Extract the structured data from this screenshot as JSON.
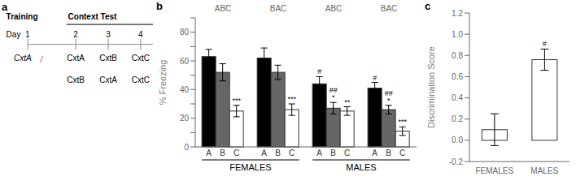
{
  "chart_data": [
    {
      "type": "diagram",
      "title": "a",
      "annotations": [
        {
          "text": "Training",
          "days": [
            {
              "label": "Day  1",
              "contexts": [
                "CxtA"
              ],
              "marks": [
                {
                  "text": "/",
                  "color": "#cc3333"
                }
              ]
            }
          ]
        },
        {
          "text": "Context Test",
          "days": [
            {
              "label": "2",
              "contexts": [
                "CxtA",
                "CxtB"
              ]
            },
            {
              "label": "3",
              "contexts": [
                "CxtB",
                "CxtA"
              ]
            },
            {
              "label": "4",
              "contexts": [
                "CxtC",
                "CxtC"
              ]
            }
          ]
        }
      ]
    },
    {
      "type": "bar",
      "title": "b",
      "categories": [
        "ABC",
        "BAC",
        "ABC",
        "BAC"
      ],
      "series": [
        {
          "name": "A",
          "color": "black",
          "values": [
            63,
            62,
            44,
            41
          ],
          "errors": [
            5,
            7,
            5,
            4
          ],
          "annotations": [
            [],
            [],
            [
              "#"
            ],
            [
              "#"
            ]
          ]
        },
        {
          "name": "B",
          "color": "#666666",
          "values": [
            52,
            52,
            27,
            26
          ],
          "errors": [
            6,
            5,
            4,
            3
          ],
          "annotations": [
            [],
            [],
            [
              "*",
              "##"
            ],
            [
              "*",
              "##"
            ]
          ]
        },
        {
          "name": "C",
          "color": "white",
          "values": [
            25,
            26,
            25,
            11
          ],
          "errors": [
            4,
            4,
            3,
            3
          ],
          "annotations": [
            [
              "***"
            ],
            [
              "***"
            ],
            [
              "**"
            ],
            [
              "***"
            ]
          ]
        }
      ],
      "ylabel": "% Freezing",
      "ylim": [
        0,
        90
      ],
      "yticks": [
        0,
        {
          "value": 10,
          "label": ""
        },
        20,
        {
          "value": 30,
          "label": ""
        },
        40,
        {
          "value": 50,
          "label": ""
        },
        60,
        {
          "value": 70,
          "label": ""
        },
        80,
        {
          "value": 90,
          "label": ""
        }
      ],
      "annotations": [
        {
          "text": "FEMALES",
          "categories": [
            0,
            1
          ]
        },
        {
          "text": "MALES",
          "categories": [
            2,
            3
          ]
        }
      ]
    },
    {
      "type": "bar",
      "title": "c",
      "categories": [
        "FEMALES",
        "MALES"
      ],
      "values": [
        0.1,
        0.76
      ],
      "errors": [
        0.15,
        0.1
      ],
      "colors": [
        "white",
        "white"
      ],
      "annotations": [
        [],
        [
          "#"
        ]
      ],
      "ylabel": "Discrimination Score",
      "ylim": [
        -0.2,
        1.2
      ],
      "yticks": [
        -0.2,
        {
          "value": 0.0,
          "label": "0.0"
        },
        0.2,
        0.4,
        0.6,
        0.8,
        {
          "value": 1.0,
          "label": "1.0"
        },
        1.2
      ]
    }
  ]
}
